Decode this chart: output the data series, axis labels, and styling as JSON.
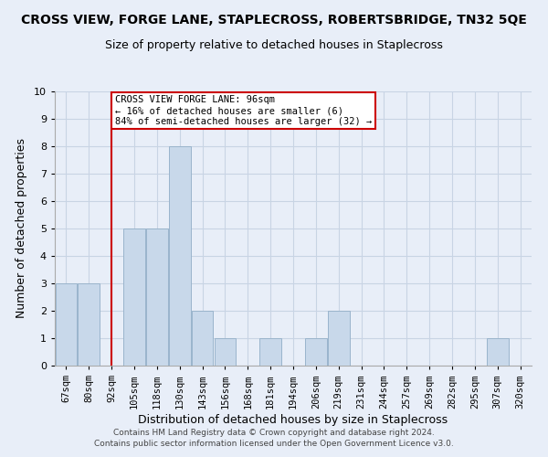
{
  "title": "CROSS VIEW, FORGE LANE, STAPLECROSS, ROBERTSBRIDGE, TN32 5QE",
  "subtitle": "Size of property relative to detached houses in Staplecross",
  "xlabel": "Distribution of detached houses by size in Staplecross",
  "ylabel": "Number of detached properties",
  "footer_lines": [
    "Contains HM Land Registry data © Crown copyright and database right 2024.",
    "Contains public sector information licensed under the Open Government Licence v3.0."
  ],
  "categories": [
    "67sqm",
    "80sqm",
    "92sqm",
    "105sqm",
    "118sqm",
    "130sqm",
    "143sqm",
    "156sqm",
    "168sqm",
    "181sqm",
    "194sqm",
    "206sqm",
    "219sqm",
    "231sqm",
    "244sqm",
    "257sqm",
    "269sqm",
    "282sqm",
    "295sqm",
    "307sqm",
    "320sqm"
  ],
  "values": [
    3,
    3,
    0,
    5,
    5,
    8,
    2,
    1,
    0,
    1,
    0,
    1,
    2,
    0,
    0,
    0,
    0,
    0,
    0,
    1,
    0
  ],
  "bar_color": "#c8d8ea",
  "bar_edge_color": "#9ab4cc",
  "red_line_index": 2,
  "red_line_label": "CROSS VIEW FORGE LANE: 96sqm",
  "annotation_line1": "← 16% of detached houses are smaller (6)",
  "annotation_line2": "84% of semi-detached houses are larger (32) →",
  "annotation_box_color": "white",
  "annotation_box_edge_color": "#cc0000",
  "ylim": [
    0,
    10
  ],
  "yticks": [
    0,
    1,
    2,
    3,
    4,
    5,
    6,
    7,
    8,
    9,
    10
  ],
  "grid_color": "#c8d4e4",
  "background_color": "#e8eef8",
  "title_fontsize": 10,
  "subtitle_fontsize": 9
}
